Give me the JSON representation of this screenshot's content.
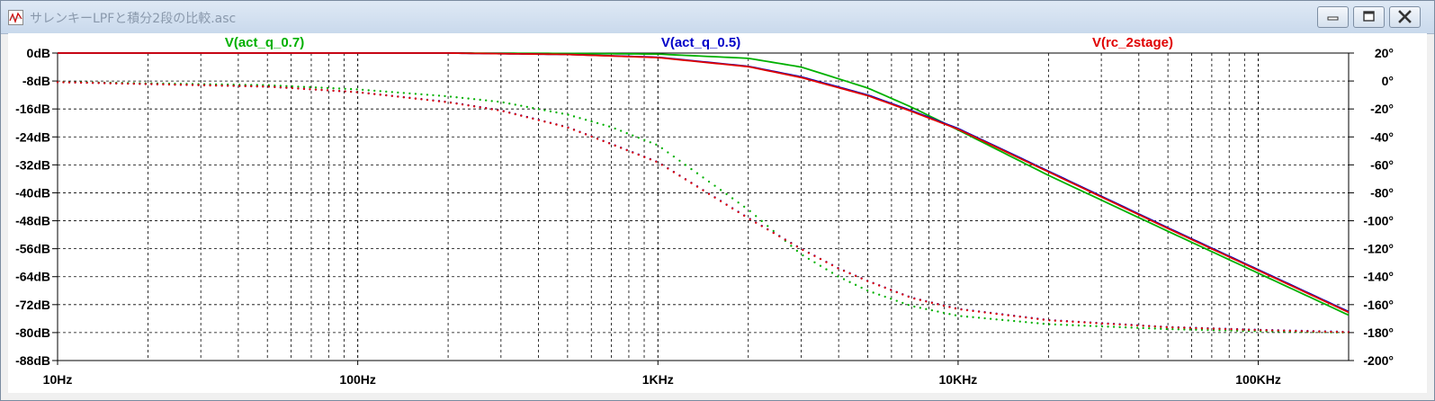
{
  "window": {
    "title": "サレンキーLPFと積分2段の比較.asc",
    "minimize_icon": "minimize-icon",
    "maximize_icon": "maximize-icon",
    "close_icon": "close-icon",
    "app_icon": "ltspice-waveform-icon"
  },
  "colors": {
    "act_q_0.7": "#00b000",
    "act_q_0.5": "#0000c8",
    "rc_2stage": "#e00000",
    "grid": "#000000",
    "background": "#ffffff"
  },
  "chart_data": {
    "type": "line",
    "x_scale": "log",
    "xlim": [
      10,
      200000
    ],
    "ylim_left": [
      -88,
      0
    ],
    "ylim_right": [
      -200,
      20
    ],
    "grid": true,
    "legend_placement": "top",
    "x_ticks": [
      {
        "value": 10,
        "label": "10Hz"
      },
      {
        "value": 100,
        "label": "100Hz"
      },
      {
        "value": 1000,
        "label": "1KHz"
      },
      {
        "value": 10000,
        "label": "10KHz"
      },
      {
        "value": 100000,
        "label": "100KHz"
      }
    ],
    "y_left_ticks": [
      {
        "value": 0,
        "label": "0dB"
      },
      {
        "value": -8,
        "label": "-8dB"
      },
      {
        "value": -16,
        "label": "-16dB"
      },
      {
        "value": -24,
        "label": "-24dB"
      },
      {
        "value": -32,
        "label": "-32dB"
      },
      {
        "value": -40,
        "label": "-40dB"
      },
      {
        "value": -48,
        "label": "-48dB"
      },
      {
        "value": -56,
        "label": "-56dB"
      },
      {
        "value": -64,
        "label": "-64dB"
      },
      {
        "value": -72,
        "label": "-72dB"
      },
      {
        "value": -80,
        "label": "-80dB"
      },
      {
        "value": -88,
        "label": "-88dB"
      }
    ],
    "y_right_ticks": [
      {
        "value": 20,
        "label": "20°"
      },
      {
        "value": 0,
        "label": "0°"
      },
      {
        "value": -20,
        "label": "-20°"
      },
      {
        "value": -40,
        "label": "-40°"
      },
      {
        "value": -60,
        "label": "-60°"
      },
      {
        "value": -80,
        "label": "-80°"
      },
      {
        "value": -100,
        "label": "-100°"
      },
      {
        "value": -120,
        "label": "-120°"
      },
      {
        "value": -140,
        "label": "-140°"
      },
      {
        "value": -160,
        "label": "-160°"
      },
      {
        "value": -180,
        "label": "-180°"
      },
      {
        "value": -200,
        "label": "-200°"
      }
    ],
    "series": [
      {
        "name": "V(act_q_0.7)",
        "color": "#00b000",
        "magnitude": {
          "x": [
            10,
            200,
            500,
            1000,
            2000,
            3000,
            5000,
            7000,
            10000,
            20000,
            50000,
            100000,
            200000
          ],
          "y": [
            0,
            0,
            -0.1,
            -0.3,
            -1.5,
            -4,
            -10,
            -15.5,
            -22,
            -35,
            -51,
            -63,
            -75
          ]
        },
        "phase": {
          "x": [
            10,
            50,
            100,
            200,
            300,
            500,
            700,
            1000,
            2000,
            3000,
            4000,
            5000,
            7000,
            10000,
            20000,
            50000,
            100000,
            200000
          ],
          "y": [
            -0.6,
            -3,
            -6,
            -11,
            -15,
            -24,
            -33,
            -46,
            -92,
            -124,
            -140,
            -150,
            -161,
            -168,
            -174,
            -177.5,
            -179,
            -180
          ]
        }
      },
      {
        "name": "V(act_q_0.5)",
        "color": "#0000c8",
        "magnitude": {
          "x": [
            10,
            200,
            500,
            1000,
            2000,
            3000,
            5000,
            7000,
            10000,
            20000,
            50000,
            100000,
            200000
          ],
          "y": [
            0,
            0,
            -0.4,
            -1.2,
            -3.8,
            -6.8,
            -12,
            -16.5,
            -21.6,
            -33.8,
            -50,
            -62,
            -74
          ]
        },
        "phase": {
          "x": [
            10,
            50,
            100,
            200,
            300,
            500,
            700,
            1000,
            2000,
            3000,
            4000,
            5000,
            7000,
            10000,
            20000,
            50000,
            100000,
            200000
          ],
          "y": [
            -0.8,
            -4,
            -8,
            -15,
            -21,
            -33,
            -45,
            -58,
            -98,
            -120,
            -134,
            -143,
            -155,
            -163,
            -171,
            -176,
            -178,
            -179.5
          ]
        }
      },
      {
        "name": "V(rc_2stage)",
        "color": "#e00000",
        "magnitude": {
          "x": [
            10,
            200,
            500,
            1000,
            2000,
            3000,
            5000,
            7000,
            10000,
            20000,
            50000,
            100000,
            200000
          ],
          "y": [
            0,
            0,
            -0.4,
            -1.3,
            -3.9,
            -7,
            -12.2,
            -16.7,
            -21.8,
            -34,
            -50.2,
            -62.2,
            -74.2
          ]
        },
        "phase": {
          "x": [
            10,
            50,
            100,
            200,
            300,
            500,
            700,
            1000,
            2000,
            3000,
            4000,
            5000,
            7000,
            10000,
            20000,
            50000,
            100000,
            200000
          ],
          "y": [
            -0.8,
            -4,
            -8,
            -15.2,
            -21.2,
            -33.2,
            -45.2,
            -58.2,
            -98.2,
            -120.2,
            -134.2,
            -143.2,
            -155.2,
            -163.2,
            -171.2,
            -176.2,
            -178.2,
            -179.7
          ]
        }
      }
    ]
  }
}
